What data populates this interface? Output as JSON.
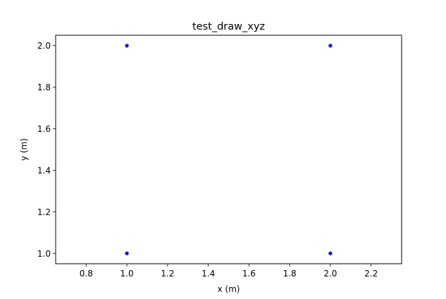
{
  "chart_data": {
    "type": "scatter",
    "title": "test_draw_xyz",
    "xlabel": "x (m)",
    "ylabel": "y (m)",
    "xlim": [
      0.65,
      2.35
    ],
    "ylim": [
      0.95,
      2.05
    ],
    "xticks": [
      0.8,
      1.0,
      1.2,
      1.4,
      1.6,
      1.8,
      2.0,
      2.2
    ],
    "xtick_labels": [
      "0.8",
      "1.0",
      "1.2",
      "1.4",
      "1.6",
      "1.8",
      "2.0",
      "2.2"
    ],
    "yticks": [
      1.0,
      1.2,
      1.4,
      1.6,
      1.8,
      2.0
    ],
    "ytick_labels": [
      "1.0",
      "1.2",
      "1.4",
      "1.6",
      "1.8",
      "2.0"
    ],
    "grid": false,
    "series": [
      {
        "color": "#0000ff",
        "marker": "circle",
        "points": [
          {
            "x": 1.0,
            "y": 2.0
          },
          {
            "x": 2.0,
            "y": 2.0
          },
          {
            "x": 1.0,
            "y": 1.0
          },
          {
            "x": 2.0,
            "y": 1.0
          }
        ]
      }
    ]
  }
}
